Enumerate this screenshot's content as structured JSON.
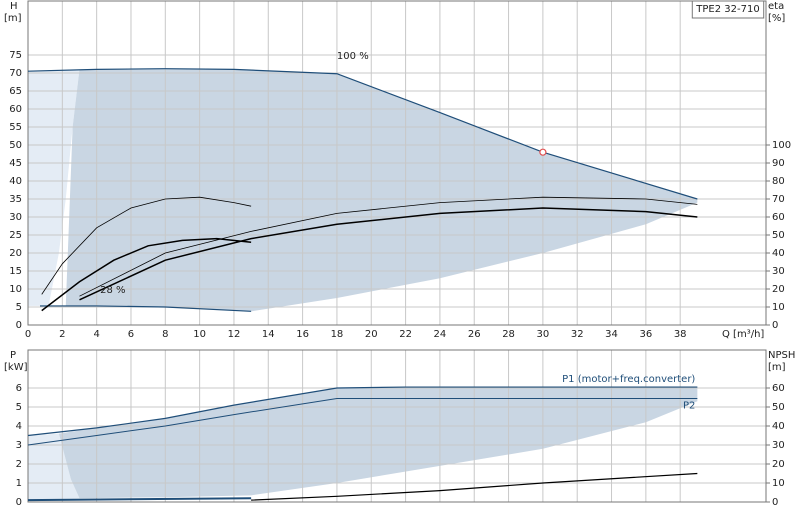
{
  "chart_data": [
    {
      "type": "line",
      "title": "TPE2 32-710",
      "y_label": "H",
      "y_unit": "[m]",
      "y2_label": "eta",
      "y2_unit": "[%]",
      "x_label": "Q [m³/h]",
      "xlim": [
        0,
        43
      ],
      "xticks": [
        0,
        2,
        4,
        6,
        8,
        10,
        12,
        14,
        16,
        18,
        20,
        22,
        24,
        26,
        28,
        30,
        32,
        34,
        36,
        38
      ],
      "ylim": [
        0,
        90
      ],
      "yticks": [
        0,
        5,
        10,
        15,
        20,
        25,
        30,
        35,
        40,
        45,
        50,
        55,
        60,
        65,
        70,
        75
      ],
      "y2lim": [
        0,
        180
      ],
      "y2ticks": [
        0,
        10,
        20,
        30,
        40,
        50,
        60,
        70,
        80,
        90,
        100
      ],
      "grid": true,
      "areas": [
        {
          "color": "#e4ecf5",
          "x": [
            0,
            3,
            2.6,
            2.2,
            1.8,
            1.2,
            0
          ],
          "values": [
            70.5,
            71,
            55,
            35,
            20,
            5.3,
            5.3
          ]
        },
        {
          "color": "#c9d6e3",
          "x": [
            3,
            8,
            12,
            18,
            30,
            39,
            39,
            36,
            30,
            24,
            18,
            13,
            8,
            4,
            2.2,
            2.4,
            2.6,
            3
          ],
          "values": [
            71,
            71.2,
            71,
            69.8,
            48,
            35,
            34,
            28,
            20,
            13,
            7.5,
            3.8,
            4.9,
            5.2,
            5.2,
            30,
            55,
            71
          ]
        }
      ],
      "series": [
        {
          "color": "#1f4e79",
          "width": 1.2,
          "x": [
            0,
            4,
            8,
            12,
            18,
            24,
            30,
            39
          ],
          "values": [
            70.5,
            71,
            71.2,
            71,
            69.8,
            59,
            48,
            35
          ]
        },
        {
          "color": "#1f4e79",
          "width": 1.2,
          "x": [
            0.7,
            4,
            8,
            13
          ],
          "values": [
            5.3,
            5.3,
            5,
            3.8
          ]
        },
        {
          "color": "#000000",
          "width": 0.8,
          "axis": "y2",
          "x": [
            3,
            8,
            13,
            18,
            24,
            30,
            36,
            39
          ],
          "values": [
            16,
            40,
            52,
            62,
            68,
            71,
            70,
            67
          ]
        },
        {
          "color": "#000000",
          "width": 1.5,
          "axis": "y2",
          "x": [
            3,
            8,
            13,
            18,
            24,
            30,
            36,
            39
          ],
          "values": [
            14,
            36,
            48,
            56,
            62,
            65,
            63,
            60
          ]
        },
        {
          "color": "#000000",
          "width": 0.8,
          "axis": "y2",
          "x": [
            0.8,
            2,
            4,
            6,
            8,
            10,
            12,
            13
          ],
          "values": [
            17,
            34,
            54,
            65,
            70,
            71,
            68,
            66
          ]
        },
        {
          "color": "#000000",
          "width": 1.5,
          "axis": "y2",
          "x": [
            0.8,
            3,
            5,
            7,
            9,
            11,
            13
          ],
          "values": [
            8,
            24,
            36,
            44,
            47,
            48,
            46
          ]
        }
      ],
      "annotations": [
        {
          "text": "100 %"
        },
        {
          "text": "28 %"
        }
      ],
      "marker": {
        "x": 30,
        "y": 48,
        "color": "#e05050"
      }
    },
    {
      "type": "line",
      "y_label": "P",
      "y_unit": "[kW]",
      "y2_label": "NPSH",
      "y2_unit": "[m]",
      "xlim": [
        0,
        43
      ],
      "ylim": [
        0,
        8
      ],
      "yticks": [
        0,
        1,
        2,
        3,
        4,
        5,
        6
      ],
      "y2lim": [
        0,
        80
      ],
      "y2ticks": [
        0,
        10,
        20,
        30,
        40,
        50,
        60
      ],
      "grid": true,
      "areas": [
        {
          "color": "#e4ecf5",
          "x": [
            0,
            1.8,
            2.5,
            3,
            0
          ],
          "values": [
            3.5,
            3.6,
            1.2,
            0.2,
            0.1
          ]
        },
        {
          "color": "#c9d6e3",
          "x": [
            1.8,
            4,
            8,
            12,
            18,
            22,
            39,
            39,
            36,
            30,
            24,
            18,
            13,
            8,
            3,
            2.5
          ],
          "values": [
            3.6,
            3.9,
            4.4,
            5.1,
            6.0,
            6.05,
            6.05,
            5.3,
            4.2,
            2.8,
            1.9,
            1.0,
            0.35,
            0.25,
            0.2,
            1.2
          ]
        }
      ],
      "series": [
        {
          "name": "P1 (motor+freq.converter)",
          "color": "#1f4e79",
          "width": 1.2,
          "x": [
            0,
            4,
            8,
            12,
            18,
            22,
            39
          ],
          "values": [
            3.5,
            3.9,
            4.4,
            5.1,
            6.0,
            6.05,
            6.05
          ]
        },
        {
          "name": "P2",
          "color": "#1f4e79",
          "width": 1.0,
          "x": [
            0,
            4,
            8,
            12,
            18,
            39
          ],
          "values": [
            3.0,
            3.5,
            4.0,
            4.6,
            5.45,
            5.45
          ]
        },
        {
          "color": "#1f4e79",
          "width": 2,
          "x": [
            0,
            13
          ],
          "values": [
            0.1,
            0.2
          ]
        },
        {
          "color": "#000000",
          "width": 1.2,
          "axis": "y2",
          "x": [
            13,
            18,
            24,
            30,
            39
          ],
          "values": [
            1,
            3,
            6,
            10,
            15
          ]
        }
      ]
    }
  ]
}
